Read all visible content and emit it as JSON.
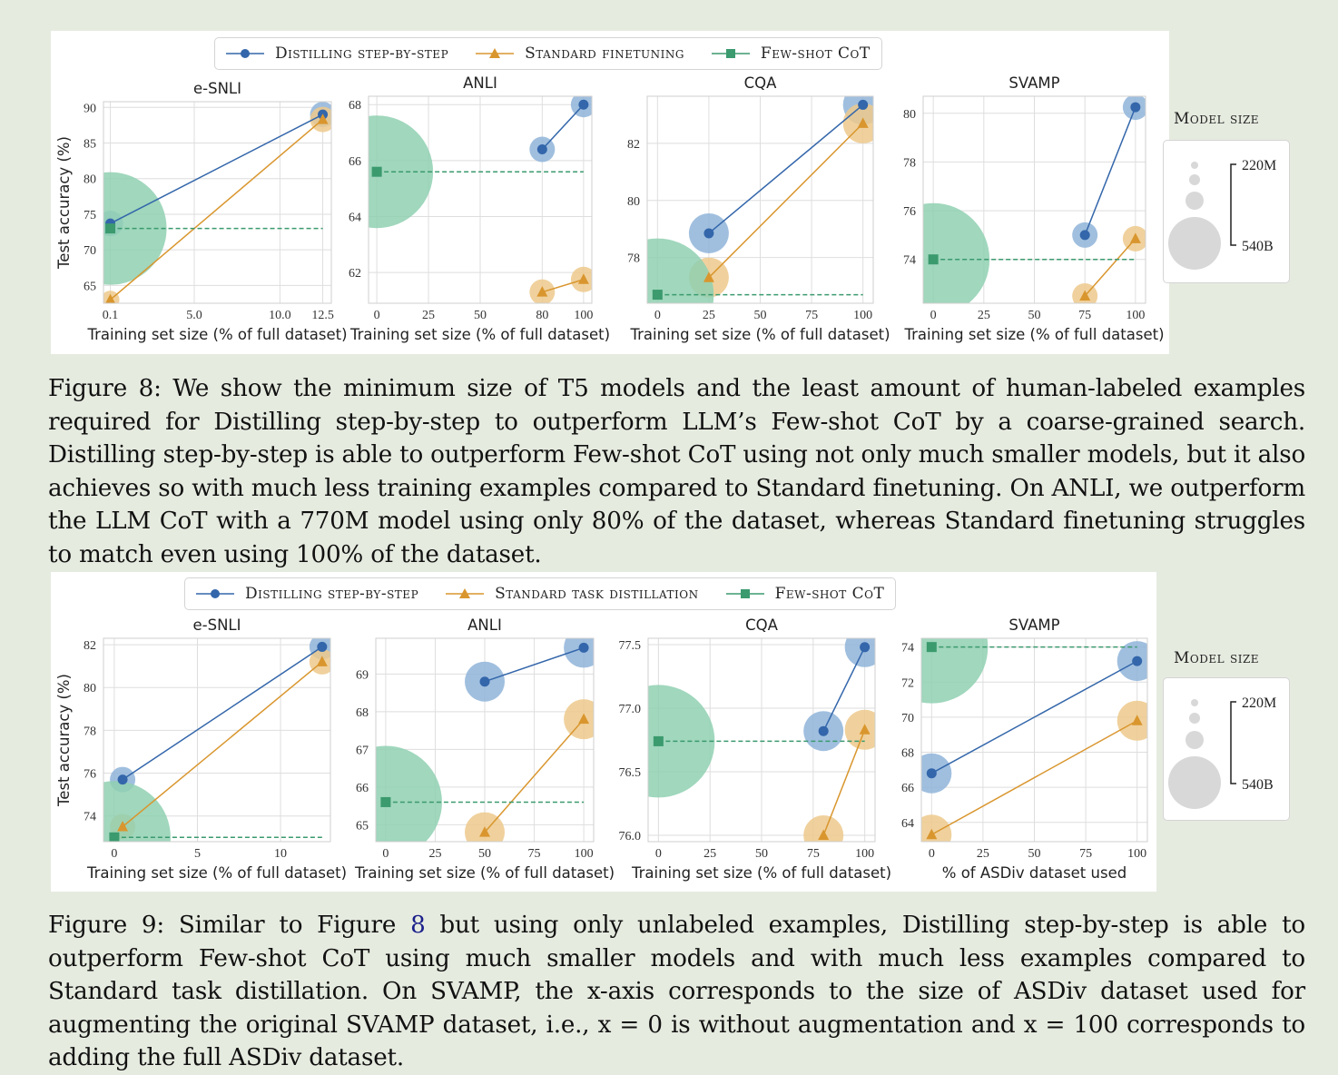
{
  "figure8": {
    "legend": [
      "Distilling step-by-step",
      "Standard finetuning",
      "Few-shot CoT"
    ],
    "model_size_title": "Model size",
    "size_labels": [
      "220M",
      "540B"
    ],
    "caption": "Figure 8: We show the minimum size of T5 models and the least amount of human-labeled examples required for Distilling step-by-step to outperform LLM’s Few-shot CoT by a coarse-grained search. Distilling step-by-step is able to outperform Few-shot CoT using not only much smaller models, but it also achieves so with much less training examples compared to Standard finetuning. On ANLI, we outperform the LLM CoT with a 770M model using only 80% of the dataset, whereas Standard finetuning struggles to match even using 100% of the dataset."
  },
  "figure9": {
    "legend": [
      "Distilling step-by-step",
      "Standard task distillation",
      "Few-shot CoT"
    ],
    "model_size_title": "Model size",
    "size_labels": [
      "220M",
      "540B"
    ],
    "caption_a": "Figure 9: Similar to Figure ",
    "caption_ref": "8",
    "caption_b": " but using only unlabeled examples, Distilling step-by-step is able to outperform Few-shot CoT using much smaller models and with much less examples compared to Standard task distillation. On SVAMP, the x-axis corresponds to the size of ASDiv dataset used for augmenting the original SVAMP dataset, i.e., x = 0 is without augmentation and x = 100 corresponds to adding the full ASDiv dataset."
  },
  "colors": {
    "distill": "#3366aa",
    "standard": "#d9962e",
    "fewshot": "#3b9a6e",
    "distill_bubble": "#8fb4d9",
    "standard_bubble": "#edc98c",
    "fewshot_bubble": "#8fd0b2"
  },
  "chart_data": [
    {
      "figure": "8",
      "type": "scatter",
      "title": "e-SNLI",
      "xlabel": "Training set size (% of full dataset)",
      "ylabel": "Test accuracy (%)",
      "xlim": [
        -0.3,
        13.0
      ],
      "ylim": [
        62.5,
        90.8
      ],
      "xticks": [
        0.1,
        5.0,
        10.0,
        12.5
      ],
      "xtick_labels": [
        "0.1",
        "5.0",
        "10.0",
        "12.5"
      ],
      "yticks": [
        65,
        70,
        75,
        80,
        85,
        90
      ],
      "series": [
        {
          "name": "Distilling step-by-step",
          "marker": "circle",
          "x": [
            0.1,
            12.5
          ],
          "y": [
            73.7,
            89.0
          ],
          "size": [
            2,
            2
          ]
        },
        {
          "name": "Standard finetuning",
          "marker": "triangle",
          "x": [
            0.1,
            12.5
          ],
          "y": [
            63.0,
            88.3
          ],
          "size": [
            1,
            2
          ]
        },
        {
          "name": "Few-shot CoT",
          "marker": "square",
          "x": [
            0.1
          ],
          "y": [
            73.0
          ],
          "size": [
            5
          ],
          "dashed_to": 12.5
        }
      ]
    },
    {
      "figure": "8",
      "type": "scatter",
      "title": "ANLI",
      "xlabel": "Training set size (% of full dataset)",
      "ylabel": "",
      "xlim": [
        -4,
        104
      ],
      "ylim": [
        60.9,
        68.3
      ],
      "xticks": [
        0,
        25,
        50,
        80,
        100
      ],
      "xtick_labels": [
        "0",
        "25",
        "50",
        "80",
        "100"
      ],
      "yticks": [
        62,
        64,
        66,
        68
      ],
      "series": [
        {
          "name": "Distilling step-by-step",
          "marker": "circle",
          "x": [
            80,
            100
          ],
          "y": [
            66.4,
            68.0
          ],
          "size": [
            2,
            2
          ]
        },
        {
          "name": "Standard finetuning",
          "marker": "triangle",
          "x": [
            80,
            100
          ],
          "y": [
            61.3,
            61.75
          ],
          "size": [
            2,
            2
          ]
        },
        {
          "name": "Few-shot CoT",
          "marker": "square",
          "x": [
            0
          ],
          "y": [
            65.6
          ],
          "size": [
            5
          ],
          "dashed_to": 100
        }
      ]
    },
    {
      "figure": "8",
      "type": "scatter",
      "title": "CQA",
      "xlabel": "Training set size (% of full dataset)",
      "ylabel": "",
      "xlim": [
        -5,
        105
      ],
      "ylim": [
        76.4,
        83.65
      ],
      "xticks": [
        0,
        25,
        50,
        75,
        100
      ],
      "xtick_labels": [
        "0",
        "25",
        "50",
        "75",
        "100"
      ],
      "yticks": [
        78,
        80,
        82
      ],
      "series": [
        {
          "name": "Distilling step-by-step",
          "marker": "circle",
          "x": [
            25,
            100
          ],
          "y": [
            78.85,
            83.35
          ],
          "size": [
            3,
            3
          ]
        },
        {
          "name": "Standard finetuning",
          "marker": "triangle",
          "x": [
            25,
            100
          ],
          "y": [
            77.3,
            82.7
          ],
          "size": [
            3,
            3
          ]
        },
        {
          "name": "Few-shot CoT",
          "marker": "square",
          "x": [
            0
          ],
          "y": [
            76.7
          ],
          "size": [
            5
          ],
          "dashed_to": 100
        }
      ]
    },
    {
      "figure": "8",
      "type": "scatter",
      "title": "SVAMP",
      "xlabel": "Training set size (% of full dataset)",
      "ylabel": "",
      "xlim": [
        -5,
        105
      ],
      "ylim": [
        72.2,
        80.7
      ],
      "xticks": [
        0,
        25,
        50,
        75,
        100
      ],
      "xtick_labels": [
        "0",
        "25",
        "50",
        "75",
        "100"
      ],
      "yticks": [
        74,
        76,
        78,
        80
      ],
      "series": [
        {
          "name": "Distilling step-by-step",
          "marker": "circle",
          "x": [
            75,
            100
          ],
          "y": [
            75.0,
            80.25
          ],
          "size": [
            2,
            2
          ]
        },
        {
          "name": "Standard finetuning",
          "marker": "triangle",
          "x": [
            75,
            100
          ],
          "y": [
            72.5,
            74.85
          ],
          "size": [
            2,
            2
          ]
        },
        {
          "name": "Few-shot CoT",
          "marker": "square",
          "x": [
            0
          ],
          "y": [
            74.0
          ],
          "size": [
            5
          ],
          "dashed_to": 100
        }
      ]
    },
    {
      "figure": "9",
      "type": "scatter",
      "title": "e-SNLI",
      "xlabel": "Training set size (% of full dataset)",
      "ylabel": "Test accuracy (%)",
      "xlim": [
        -0.65,
        13.0
      ],
      "ylim": [
        72.8,
        82.3
      ],
      "xticks": [
        0,
        5,
        10
      ],
      "xtick_labels": [
        "0",
        "5",
        "10"
      ],
      "yticks": [
        74,
        76,
        78,
        80,
        82
      ],
      "series": [
        {
          "name": "Distilling step-by-step",
          "marker": "circle",
          "x": [
            0.5,
            12.5
          ],
          "y": [
            75.7,
            81.9
          ],
          "size": [
            2,
            2
          ]
        },
        {
          "name": "Standard task distillation",
          "marker": "triangle",
          "x": [
            0.5,
            12.5
          ],
          "y": [
            73.5,
            81.2
          ],
          "size": [
            2,
            2
          ]
        },
        {
          "name": "Few-shot CoT",
          "marker": "square",
          "x": [
            0
          ],
          "y": [
            73.0
          ],
          "size": [
            5
          ],
          "dashed_to": 12.5
        }
      ]
    },
    {
      "figure": "9",
      "type": "scatter",
      "title": "ANLI",
      "xlabel": "Training set size (% of full dataset)",
      "ylabel": "",
      "xlim": [
        -5,
        105
      ],
      "ylim": [
        64.55,
        69.95
      ],
      "xticks": [
        0,
        25,
        50,
        75,
        100
      ],
      "xtick_labels": [
        "0",
        "25",
        "50",
        "75",
        "100"
      ],
      "yticks": [
        65,
        66,
        67,
        68,
        69
      ],
      "series": [
        {
          "name": "Distilling step-by-step",
          "marker": "circle",
          "x": [
            50,
            100
          ],
          "y": [
            68.8,
            69.7
          ],
          "size": [
            3,
            3
          ]
        },
        {
          "name": "Standard task distillation",
          "marker": "triangle",
          "x": [
            50,
            100
          ],
          "y": [
            64.8,
            67.8
          ],
          "size": [
            3,
            3
          ]
        },
        {
          "name": "Few-shot CoT",
          "marker": "square",
          "x": [
            0
          ],
          "y": [
            65.6
          ],
          "size": [
            5
          ],
          "dashed_to": 100
        }
      ]
    },
    {
      "figure": "9",
      "type": "scatter",
      "title": "CQA",
      "xlabel": "Training set size (% of full dataset)",
      "ylabel": "",
      "xlim": [
        -5,
        105
      ],
      "ylim": [
        75.95,
        77.55
      ],
      "xticks": [
        0,
        25,
        50,
        75,
        100
      ],
      "xtick_labels": [
        "0",
        "25",
        "50",
        "75",
        "100"
      ],
      "yticks": [
        76.0,
        76.5,
        77.0,
        77.5
      ],
      "ytick_labels": [
        "76.0",
        "76.5",
        "77.0",
        "77.5"
      ],
      "series": [
        {
          "name": "Distilling step-by-step",
          "marker": "circle",
          "x": [
            80,
            100
          ],
          "y": [
            76.82,
            77.48
          ],
          "size": [
            3,
            3
          ]
        },
        {
          "name": "Standard task distillation",
          "marker": "triangle",
          "x": [
            80,
            100
          ],
          "y": [
            76.0,
            76.83
          ],
          "size": [
            3,
            3
          ]
        },
        {
          "name": "Few-shot CoT",
          "marker": "square",
          "x": [
            0
          ],
          "y": [
            76.74
          ],
          "size": [
            5
          ],
          "dashed_to": 100
        }
      ]
    },
    {
      "figure": "9",
      "type": "scatter",
      "title": "SVAMP",
      "xlabel": "% of ASDiv dataset used",
      "ylabel": "",
      "xlim": [
        -5,
        105
      ],
      "ylim": [
        62.9,
        74.5
      ],
      "xticks": [
        0,
        25,
        50,
        75,
        100
      ],
      "xtick_labels": [
        "0",
        "25",
        "50",
        "75",
        "100"
      ],
      "yticks": [
        64,
        66,
        68,
        70,
        72,
        74
      ],
      "series": [
        {
          "name": "Distilling step-by-step",
          "marker": "circle",
          "x": [
            0,
            100
          ],
          "y": [
            66.8,
            73.2
          ],
          "size": [
            3,
            3
          ]
        },
        {
          "name": "Standard task distillation",
          "marker": "triangle",
          "x": [
            0,
            100
          ],
          "y": [
            63.3,
            69.8
          ],
          "size": [
            3,
            3
          ]
        },
        {
          "name": "Few-shot CoT",
          "marker": "square",
          "x": [
            0
          ],
          "y": [
            74.0
          ],
          "size": [
            5
          ],
          "dashed_to": 100
        }
      ]
    }
  ]
}
